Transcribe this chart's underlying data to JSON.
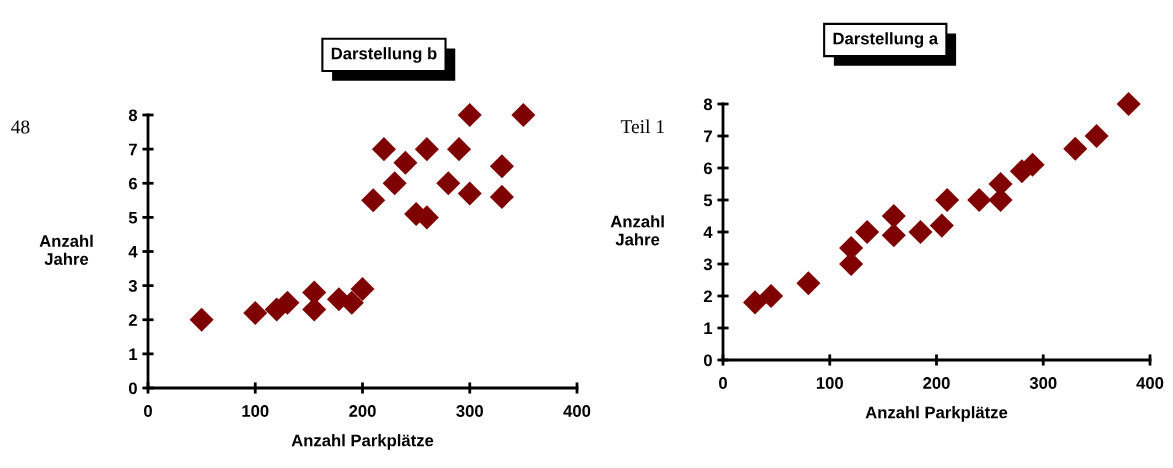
{
  "chart_data": [
    {
      "type": "scatter",
      "title": "Darstellung b",
      "xlabel": "Anzahl Parkplätze",
      "ylabel": "Anzahl\nJahre",
      "annotations": [
        "48"
      ],
      "marker": "diamond",
      "grid": false,
      "xlim": [
        0,
        400
      ],
      "xticks": [
        0,
        100,
        200,
        300,
        400
      ],
      "ylim": [
        0,
        8
      ],
      "yticks": [
        0,
        1,
        2,
        3,
        4,
        5,
        6,
        7,
        8
      ],
      "series": [
        {
          "color": "#7f0000",
          "x": [
            50,
            100,
            120,
            130,
            155,
            155,
            178,
            190,
            200,
            210,
            220,
            230,
            240,
            250,
            260,
            260,
            280,
            290,
            300,
            300,
            330,
            330,
            350
          ],
          "values": [
            2,
            2.2,
            2.3,
            2.5,
            2.8,
            2.3,
            2.6,
            2.5,
            2.9,
            5.5,
            7,
            6,
            6.6,
            5.1,
            5,
            7,
            6,
            7,
            8,
            5.7,
            6.5,
            5.6,
            8
          ]
        }
      ]
    },
    {
      "type": "scatter",
      "title": "Darstellung a",
      "xlabel": "Anzahl Parkplätze",
      "ylabel": "Anzahl\nJahre",
      "annotations": [
        "Teil 1"
      ],
      "marker": "diamond",
      "grid": false,
      "xlim": [
        0,
        400
      ],
      "xticks": [
        0,
        100,
        200,
        300,
        400
      ],
      "ylim": [
        0,
        8
      ],
      "yticks": [
        0,
        1,
        2,
        3,
        4,
        5,
        6,
        7,
        8
      ],
      "series": [
        {
          "color": "#7f0000",
          "x": [
            30,
            45,
            80,
            120,
            120,
            135,
            160,
            160,
            185,
            205,
            210,
            240,
            260,
            260,
            280,
            290,
            330,
            350,
            380
          ],
          "values": [
            1.8,
            2,
            2.4,
            3.5,
            3,
            4,
            4.5,
            3.9,
            4,
            4.2,
            5,
            5,
            5.5,
            5,
            5.9,
            6.1,
            6.6,
            7,
            8
          ]
        }
      ]
    }
  ]
}
